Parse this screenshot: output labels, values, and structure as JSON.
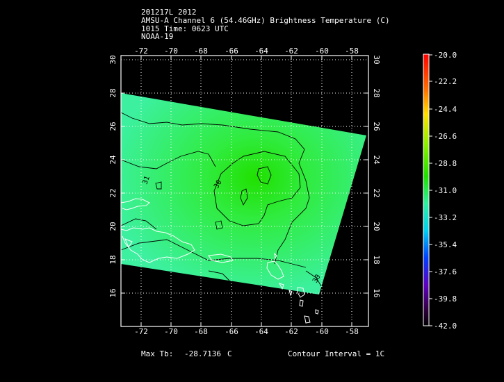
{
  "header": {
    "line1": "201217L 2012",
    "line2": "AMSU-A Channel 6 (54.46GHz) Brightness Temperature (C)",
    "line3": "1015 Time: 0623 UTC",
    "line4": "NOAA-19"
  },
  "map": {
    "lon_ticks": [
      "-72",
      "-70",
      "-68",
      "-66",
      "-64",
      "-62",
      "-60",
      "-58"
    ],
    "lat_ticks": [
      "30",
      "28",
      "26",
      "24",
      "22",
      "20",
      "18",
      "16"
    ],
    "contour_labels": [
      "31",
      "30",
      "30"
    ]
  },
  "colorbar": {
    "labels": [
      "-20.0",
      "-22.2",
      "-24.4",
      "-26.6",
      "-28.8",
      "-31.0",
      "-33.2",
      "-35.4",
      "-37.6",
      "-39.8",
      "-42.0"
    ]
  },
  "footer": {
    "max_label": "Max Tb:",
    "max_value": "-28.7136",
    "max_unit": "C",
    "contour_interval": "Contour Interval = 1C"
  },
  "colors": {
    "background": "#000000",
    "swath_low": "#2ef0a0",
    "swath_high": "#24e000",
    "coastline": "#ffffff"
  }
}
